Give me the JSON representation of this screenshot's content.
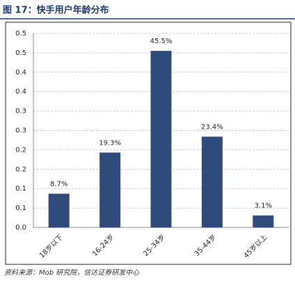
{
  "chart_data": {
    "type": "bar",
    "title": "图 17：快手用户年龄分布",
    "categories": [
      "18岁以下",
      "16-24岁",
      "25-34岁",
      "35-44岁",
      "45岁以上"
    ],
    "values": [
      0.087,
      0.193,
      0.455,
      0.234,
      0.031
    ],
    "value_labels": [
      "8.7%",
      "19.3%",
      "45.5%",
      "23.4%",
      "3.1%"
    ],
    "color": "#2f4b7c",
    "ylim": [
      0,
      0.5
    ],
    "yticks": [
      {
        "value": 0,
        "label": "0.0"
      },
      {
        "value": 0.05,
        "label": "0.1"
      },
      0.1,
      {
        "value": 0.15,
        "label": "0.2"
      },
      0.2,
      {
        "value": 0.25,
        "label": "0.3"
      },
      0.3,
      {
        "value": 0.35,
        "label": "0.4"
      },
      0.4,
      {
        "value": 0.45,
        "label": "0.5"
      },
      0.5
    ],
    "grid": true,
    "source": "资料来源：Mob 研究院，信达证券研发中心"
  }
}
